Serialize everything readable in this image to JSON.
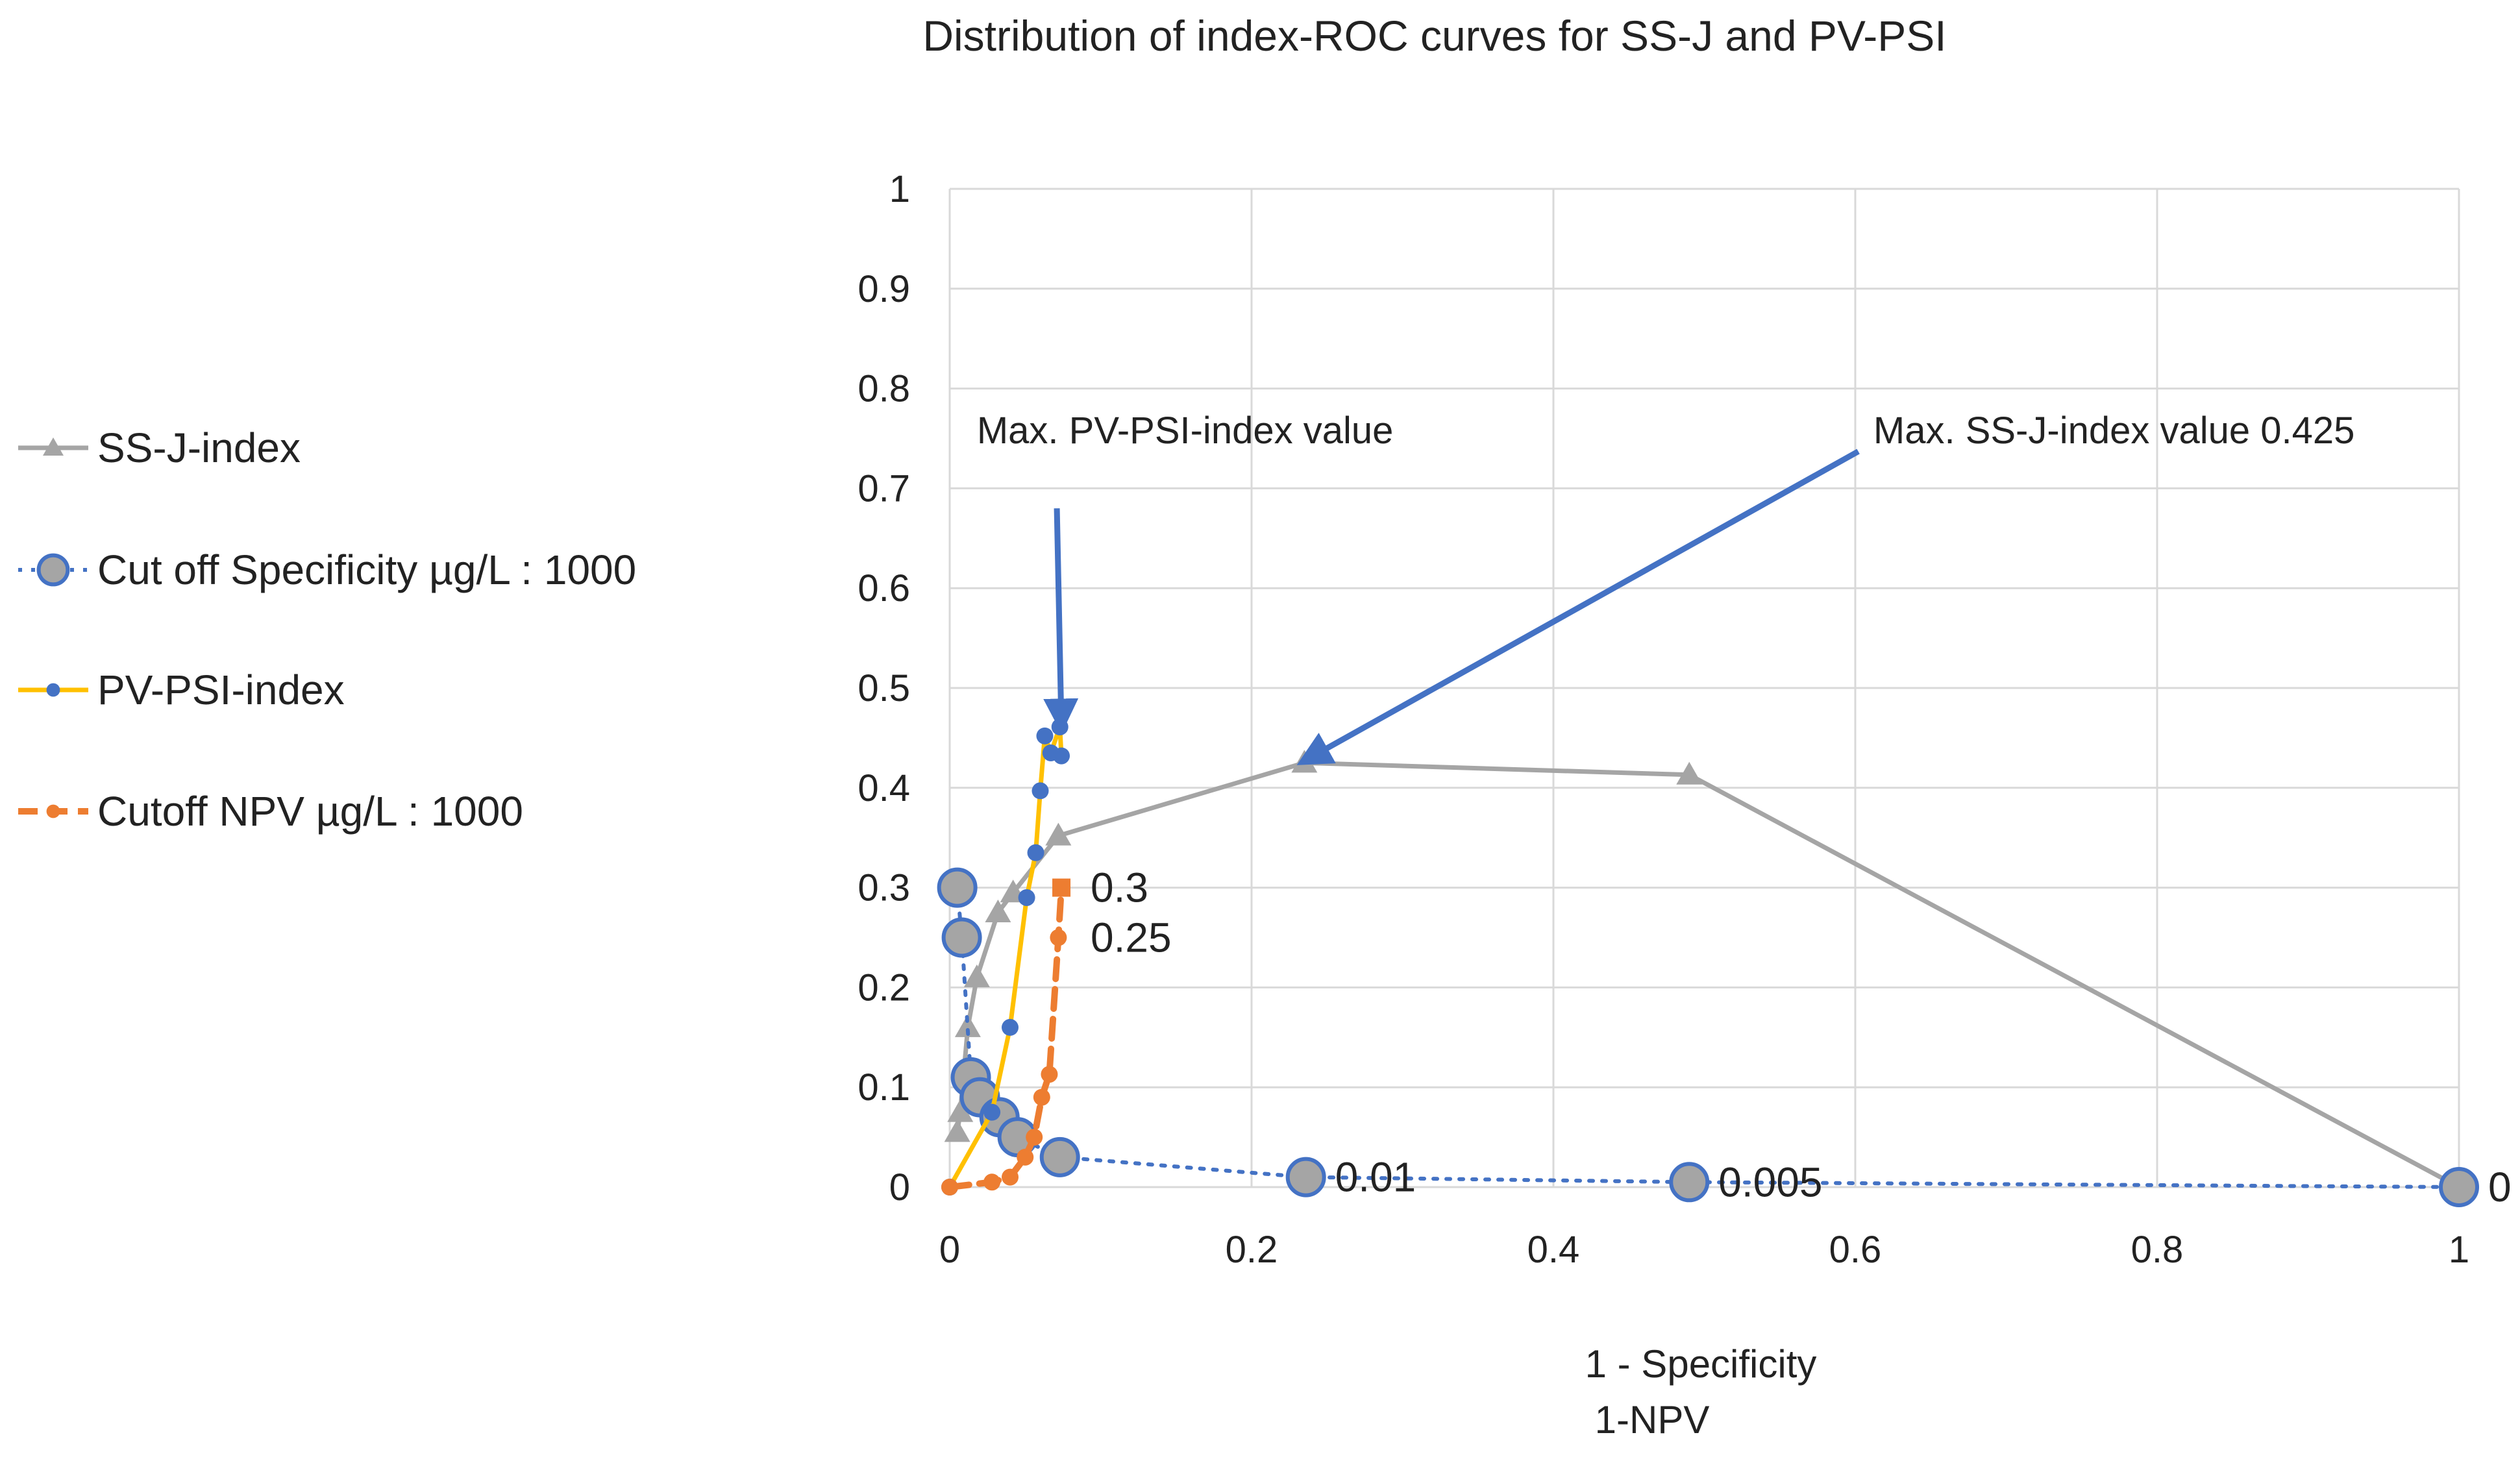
{
  "chart_data": {
    "type": "line",
    "title": "Distribution of index-ROC curves for SS-J and PV-PSI",
    "xlabel": "1 - Specificity",
    "xlabel2": "1-NPV",
    "ylabel": "",
    "xlim": [
      0,
      1
    ],
    "ylim": [
      0,
      1
    ],
    "x_ticks": [
      "0",
      "0.2",
      "0.4",
      "0.6",
      "0.8",
      "1"
    ],
    "y_ticks": [
      "0",
      "0.1",
      "0.2",
      "0.3",
      "0.4",
      "0.5",
      "0.6",
      "0.7",
      "0.8",
      "0.9",
      "1"
    ],
    "grid": true,
    "legend_position": "left",
    "series": [
      {
        "name": "SS-J-index",
        "color": "#A5A5A5",
        "marker": "triangle",
        "line": "solid",
        "points": [
          [
            0.005,
            0.055
          ],
          [
            0.007,
            0.075
          ],
          [
            0.012,
            0.16
          ],
          [
            0.018,
            0.21
          ],
          [
            0.032,
            0.275
          ],
          [
            0.042,
            0.295
          ],
          [
            0.072,
            0.352
          ],
          [
            0.235,
            0.425
          ],
          [
            0.49,
            0.413
          ],
          [
            1.0,
            0.0
          ]
        ]
      },
      {
        "name": "Cut off Specificity µg/L : 1000",
        "color": "#4472C4",
        "marker_fill": "#A5A5A5",
        "marker": "circle",
        "line": "dotted",
        "points": [
          [
            0.005,
            0.3
          ],
          [
            0.008,
            0.25
          ],
          [
            0.014,
            0.11
          ],
          [
            0.02,
            0.09
          ],
          [
            0.033,
            0.07
          ],
          [
            0.045,
            0.05
          ],
          [
            0.073,
            0.03
          ],
          [
            0.236,
            0.01
          ],
          [
            0.49,
            0.005
          ],
          [
            1.0,
            0.0
          ]
        ]
      },
      {
        "name": "PV-PSI-index",
        "color": "#FFC000",
        "marker_fill": "#4472C4",
        "marker": "dot",
        "line": "solid",
        "points": [
          [
            0.0,
            0.0
          ],
          [
            0.028,
            0.075
          ],
          [
            0.04,
            0.16
          ],
          [
            0.051,
            0.29
          ],
          [
            0.057,
            0.335
          ],
          [
            0.06,
            0.397
          ],
          [
            0.063,
            0.452
          ],
          [
            0.067,
            0.435
          ],
          [
            0.073,
            0.461
          ],
          [
            0.074,
            0.432
          ]
        ]
      },
      {
        "name": "Cutoff NPV µg/L : 1000",
        "color": "#ED7D31",
        "marker": "dot",
        "line": "dashed",
        "points": [
          [
            0.0,
            0.0
          ],
          [
            0.028,
            0.005
          ],
          [
            0.04,
            0.01
          ],
          [
            0.05,
            0.03
          ],
          [
            0.056,
            0.05
          ],
          [
            0.061,
            0.09
          ],
          [
            0.066,
            0.113
          ],
          [
            0.072,
            0.25
          ],
          [
            0.074,
            0.3
          ]
        ]
      }
    ],
    "data_labels": [
      {
        "text": "0.3",
        "x": 0.074,
        "y": 0.3,
        "placement": "right"
      },
      {
        "text": "0.25",
        "x": 0.074,
        "y": 0.25,
        "placement": "right"
      },
      {
        "text": "0.01",
        "x": 0.236,
        "y": 0.01,
        "placement": "right"
      },
      {
        "text": "0.005",
        "x": 0.49,
        "y": 0.005,
        "placement": "right"
      },
      {
        "text": "0",
        "x": 1.0,
        "y": 0.0,
        "placement": "right"
      }
    ],
    "annotations": [
      {
        "text": "Max. PV-PSI-index value",
        "text_x": 0.018,
        "text_y": 0.745,
        "arrow_from": [
          0.071,
          0.68
        ],
        "arrow_to": [
          0.074,
          0.463
        ]
      },
      {
        "text": "Max. SS-J-index value 0.425",
        "text_x": 0.612,
        "text_y": 0.745,
        "arrow_from": [
          0.602,
          0.737
        ],
        "arrow_to": [
          0.235,
          0.427
        ]
      }
    ],
    "colors": {
      "grid": "#D9D9D9",
      "arrow": "#4472C4",
      "text": "#222222"
    }
  }
}
